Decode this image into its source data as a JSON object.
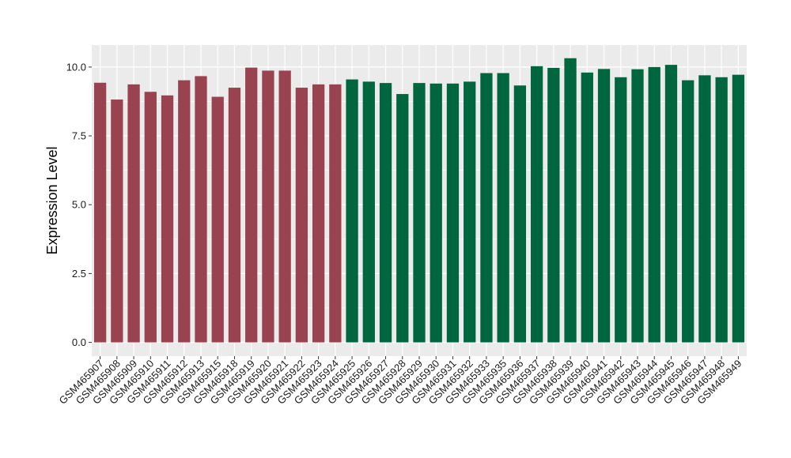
{
  "chart_data": {
    "type": "bar",
    "title": "",
    "xlabel": "",
    "ylabel": "Expression Level",
    "ylim": [
      -0.5,
      10.8
    ],
    "yticks": [
      0.0,
      2.5,
      5.0,
      7.5,
      10.0
    ],
    "ytick_labels": [
      "0.0",
      "2.5",
      "5.0",
      "7.5",
      "10.0"
    ],
    "grid": true,
    "legend": "none",
    "categories": [
      "GSM465907",
      "GSM465908",
      "GSM465909",
      "GSM465910",
      "GSM465911",
      "GSM465912",
      "GSM465913",
      "GSM465915",
      "GSM465918",
      "GSM465919",
      "GSM465920",
      "GSM465921",
      "GSM465922",
      "GSM465923",
      "GSM465924",
      "GSM465925",
      "GSM465926",
      "GSM465927",
      "GSM465928",
      "GSM465929",
      "GSM465930",
      "GSM465931",
      "GSM465932",
      "GSM465933",
      "GSM465935",
      "GSM465936",
      "GSM465937",
      "GSM465938",
      "GSM465939",
      "GSM465940",
      "GSM465941",
      "GSM465942",
      "GSM465943",
      "GSM465944",
      "GSM465945",
      "GSM465946",
      "GSM465947",
      "GSM465948",
      "GSM465949"
    ],
    "values": [
      9.43,
      8.82,
      9.37,
      9.1,
      8.97,
      9.52,
      9.67,
      8.92,
      9.25,
      9.98,
      9.87,
      9.87,
      9.25,
      9.37,
      9.37,
      9.55,
      9.47,
      9.42,
      9.02,
      9.42,
      9.4,
      9.4,
      9.47,
      9.78,
      9.78,
      9.33,
      10.03,
      9.97,
      10.32,
      9.8,
      9.93,
      9.63,
      9.92,
      10.0,
      10.08,
      9.52,
      9.7,
      9.63,
      9.72
    ],
    "groups": [
      0,
      0,
      0,
      0,
      0,
      0,
      0,
      0,
      0,
      0,
      0,
      0,
      0,
      0,
      0,
      1,
      1,
      1,
      1,
      1,
      1,
      1,
      1,
      1,
      1,
      1,
      1,
      1,
      1,
      1,
      1,
      1,
      1,
      1,
      1,
      1,
      1,
      1,
      1
    ],
    "colors": [
      "#9a4350",
      "#006640"
    ],
    "panel_background": "#ebebeb",
    "gridline_color": "#ffffff"
  }
}
